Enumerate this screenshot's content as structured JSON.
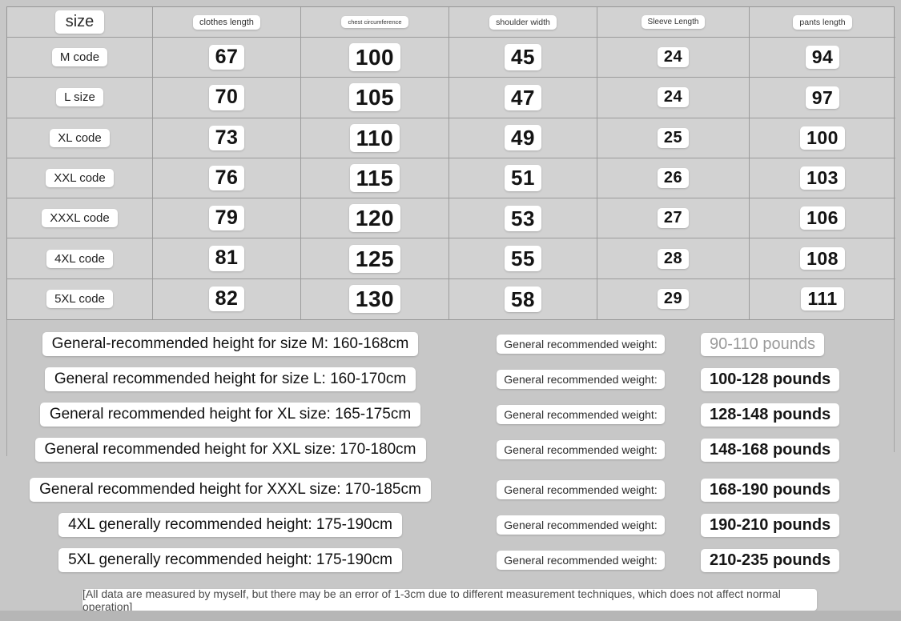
{
  "colors": {
    "background": "#c7c7c7",
    "table_cell": "#d2d2d2",
    "grid_border": "#9c9c9c",
    "label_chip": "#ffffff",
    "text": "#141414",
    "muted_value": "#9b9b9b",
    "bottom_strip": "#b6b6b6"
  },
  "chart_data": {
    "type": "table",
    "title": "clothing size chart",
    "columns": [
      "size",
      "clothes length",
      "chest circumference",
      "shoulder width",
      "Sleeve Length",
      "pants length"
    ],
    "rows": [
      [
        "M code",
        "67",
        "100",
        "45",
        "24",
        "94"
      ],
      [
        "L size",
        "70",
        "105",
        "47",
        "24",
        "97"
      ],
      [
        "XL code",
        "73",
        "110",
        "49",
        "25",
        "100"
      ],
      [
        "XXL code",
        "76",
        "115",
        "51",
        "26",
        "103"
      ],
      [
        "XXXL code",
        "79",
        "120",
        "53",
        "27",
        "106"
      ],
      [
        "4XL code",
        "81",
        "125",
        "55",
        "28",
        "108"
      ],
      [
        "5XL code",
        "82",
        "130",
        "58",
        "29",
        "111"
      ]
    ]
  },
  "recommendations": [
    {
      "height": "General-recommended height for size M: 160-168cm",
      "weight_label": "General recommended weight:",
      "weight_value": "90-110 pounds"
    },
    {
      "height": "General recommended height for size L: 160-170cm",
      "weight_label": "General recommended weight:",
      "weight_value": "100-128 pounds"
    },
    {
      "height": "General recommended height for XL size: 165-175cm",
      "weight_label": "General recommended weight:",
      "weight_value": "128-148 pounds"
    },
    {
      "height": "General recommended height for XXL size: 170-180cm",
      "weight_label": "General recommended weight:",
      "weight_value": "148-168 pounds"
    },
    {
      "height": "General recommended height for XXXL size: 170-185cm",
      "weight_label": "General recommended weight:",
      "weight_value": "168-190 pounds"
    },
    {
      "height": "4XL generally recommended height: 175-190cm",
      "weight_label": "General recommended weight:",
      "weight_value": "190-210 pounds"
    },
    {
      "height": "5XL generally recommended height: 175-190cm",
      "weight_label": "General recommended weight:",
      "weight_value": "210-235 pounds"
    }
  ],
  "footer": {
    "note": "[All data are measured by myself, but there may be an error of 1-3cm due to different measurement techniques, which does not affect normal operation]"
  }
}
